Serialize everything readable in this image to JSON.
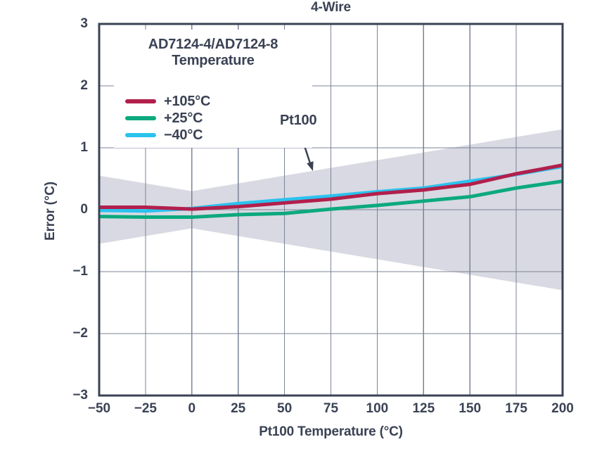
{
  "chart_data": {
    "type": "line",
    "title": "4-Wire",
    "xlabel": "Pt100 Temperature (°C)",
    "ylabel": "Error (°C)",
    "xlim": [
      -50,
      200
    ],
    "ylim": [
      -3,
      3
    ],
    "grid": true,
    "x_ticks": [
      -50,
      -25,
      0,
      25,
      50,
      75,
      100,
      125,
      150,
      175,
      200
    ],
    "x_tick_labels": [
      "−50",
      "−25",
      "0",
      "25",
      "50",
      "75",
      "100",
      "125",
      "150",
      "175",
      "200"
    ],
    "y_ticks": [
      3,
      2,
      1,
      0,
      -1,
      -2,
      -3
    ],
    "y_tick_labels": [
      "3",
      "2",
      "1",
      "0",
      "−1",
      "−2",
      "−3"
    ],
    "legend": {
      "position": "top-left",
      "title": [
        "AD7124-4/AD7124-8",
        "Temperature"
      ]
    },
    "x": [
      -50,
      -25,
      0,
      25,
      50,
      75,
      100,
      125,
      150,
      175,
      200
    ],
    "series": [
      {
        "name": "+105°C",
        "color": "#B21F4B",
        "values": [
          0.04,
          0.04,
          0.01,
          0.05,
          0.11,
          0.17,
          0.26,
          0.32,
          0.41,
          0.58,
          0.72
        ]
      },
      {
        "name": "+25°C",
        "color": "#0CA97E",
        "values": [
          -0.11,
          -0.12,
          -0.12,
          -0.08,
          -0.06,
          0.01,
          0.07,
          0.14,
          0.21,
          0.35,
          0.46
        ]
      },
      {
        "name": "−40°C",
        "color": "#2BC2EE",
        "values": [
          -0.01,
          -0.02,
          0.02,
          0.1,
          0.16,
          0.22,
          0.29,
          0.35,
          0.46,
          0.57,
          0.7
        ]
      }
    ],
    "band": {
      "label": "Pt100",
      "color": "#D8D9E2",
      "x": [
        -50,
        0,
        200
      ],
      "upper": [
        0.55,
        0.3,
        1.3
      ],
      "lower": [
        -0.55,
        -0.3,
        -1.3
      ]
    },
    "annotation": {
      "text": "Pt100"
    }
  },
  "style": {
    "text": "#3A4254",
    "frame": "#3A4254",
    "grid": "#7B8397",
    "background": "#FFFFFF"
  }
}
